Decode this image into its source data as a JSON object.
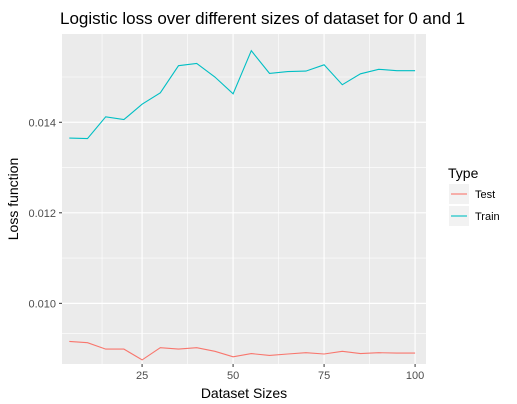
{
  "chart_data": {
    "type": "line",
    "title": "Logistic loss over different sizes of dataset for 0 and 1",
    "xlabel": "Dataset Sizes",
    "ylabel": "Loss function",
    "xlim": [
      3,
      103
    ],
    "ylim": [
      0.00866,
      0.01595
    ],
    "x_ticks": [
      25,
      50,
      75,
      100
    ],
    "x_tick_labels": [
      "25",
      "50",
      "75",
      "100"
    ],
    "y_ticks": [
      0.01,
      0.012,
      0.014
    ],
    "y_tick_labels": [
      "0.010",
      "0.012",
      "0.014"
    ],
    "grid": true,
    "legend": {
      "title": "Type",
      "position": "right"
    },
    "x": [
      5,
      10,
      15,
      20,
      25,
      30,
      35,
      40,
      45,
      50,
      55,
      60,
      65,
      70,
      75,
      80,
      85,
      90,
      95,
      100
    ],
    "series": [
      {
        "name": "Test",
        "color": "#f8766d",
        "values": [
          0.00916,
          0.00913,
          0.00899,
          0.00899,
          0.00875,
          0.00902,
          0.00899,
          0.00902,
          0.00894,
          0.00882,
          0.00889,
          0.00885,
          0.00888,
          0.00891,
          0.00888,
          0.00894,
          0.00889,
          0.00891,
          0.0089,
          0.0089
        ]
      },
      {
        "name": "Train",
        "color": "#00bfc4",
        "values": [
          0.01365,
          0.01364,
          0.01412,
          0.01406,
          0.0144,
          0.01465,
          0.01525,
          0.0153,
          0.015,
          0.01463,
          0.01558,
          0.01508,
          0.01512,
          0.01513,
          0.01527,
          0.01483,
          0.01507,
          0.01517,
          0.01514,
          0.01514
        ]
      }
    ]
  }
}
